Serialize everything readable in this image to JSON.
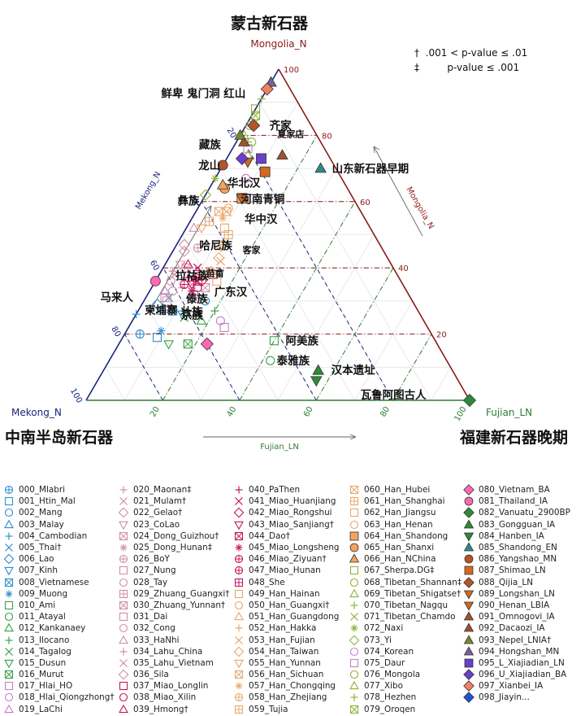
{
  "chart_data": {
    "type": "scatter",
    "subtype": "ternary",
    "titles": {
      "top": "蒙古新石器",
      "left": "中南半岛新石器",
      "right": "福建新石器晚期"
    },
    "vertex_labels": {
      "top": "Mongolia_N",
      "left": "Mekong_N",
      "right": "Fujian_LN"
    },
    "axis_labels": {
      "left": "Mekong_N",
      "right": "Mongolia_N",
      "bottom": "Fujian_LN"
    },
    "ticks": {
      "left": [
        "20",
        "40",
        "60",
        "80",
        "100"
      ],
      "right": [
        "20",
        "40",
        "60",
        "80",
        "100"
      ],
      "bottom": [
        "20",
        "40",
        "60",
        "80",
        "100"
      ]
    },
    "significance_notes": [
      {
        "symbol": "†",
        "text": ".001 < p-value ≤ .01"
      },
      {
        "symbol": "‡",
        "text": "p-value ≤ .001"
      }
    ],
    "grid": true,
    "reference_lines_mongolia": [
      20,
      40,
      60,
      80
    ],
    "annotations": [
      {
        "text": "鲜卑 鬼门洞 红山",
        "mon": 93,
        "fuj": 0
      },
      {
        "text": "齐家",
        "mon": 83,
        "fuj": 4
      },
      {
        "text": "藏族",
        "mon": 78,
        "fuj": 0
      },
      {
        "text": "夏家店",
        "mon": 78,
        "fuj": 9
      },
      {
        "text": "龙山",
        "mon": 71,
        "fuj": 0
      },
      {
        "text": "华北汉",
        "mon": 66,
        "fuj": 2
      },
      {
        "text": "山东新石器早期",
        "mon": 70,
        "fuj": 26
      },
      {
        "text": "彝族",
        "mon": 61,
        "fuj": 0
      },
      {
        "text": "河南青铜",
        "mon": 61,
        "fuj": 8
      },
      {
        "text": "华中汉",
        "mon": 55,
        "fuj": 12
      },
      {
        "text": "客家",
        "mon": 46,
        "fuj": 16
      },
      {
        "text": "哈尼族",
        "mon": 47,
        "fuj": 0
      },
      {
        "text": "苗畲",
        "mon": 39,
        "fuj": 13
      },
      {
        "text": "拉祜族",
        "mon": 38,
        "fuj": 0
      },
      {
        "text": "广东汉",
        "mon": 33,
        "fuj": 16
      },
      {
        "text": "马来人",
        "mon": 31,
        "fuj": 0
      },
      {
        "text": "傣族",
        "mon": 31,
        "fuj": 2
      },
      {
        "text": "柬埔寨",
        "mon": 27,
        "fuj": 0
      },
      {
        "text": "京族",
        "mon": 27,
        "fuj": 4
      },
      {
        "text": "壮族",
        "mon": 27,
        "fuj": 12
      },
      {
        "text": "阿美族",
        "mon": 18,
        "fuj": 40
      },
      {
        "text": "泰雅族",
        "mon": 12,
        "fuj": 42
      },
      {
        "text": "汉本遗址",
        "mon": 9,
        "fuj": 56
      },
      {
        "text": "瓦鲁阿图古人",
        "mon": 2,
        "fuj": 68
      }
    ],
    "series": [
      {
        "name": "000_Mlabri",
        "shape": "circleplus",
        "color": "#2d8fcf",
        "fill": false,
        "mon": 20,
        "fuj": 4
      },
      {
        "name": "001_Htin_Mal",
        "shape": "square",
        "color": "#2d8fcf",
        "fill": false,
        "mon": 19,
        "fuj": 9
      },
      {
        "name": "002_Mang",
        "shape": "circle",
        "color": "#2d8fcf",
        "fill": false,
        "mon": 30,
        "fuj": 16
      },
      {
        "name": "003_Malay",
        "shape": "triangle",
        "color": "#2d8fcf",
        "fill": false,
        "mon": 27,
        "fuj": 6
      },
      {
        "name": "004_Cambodian",
        "shape": "plus",
        "color": "#2d8fcf",
        "fill": false,
        "mon": 26,
        "fuj": 0
      },
      {
        "name": "005_Thai†",
        "shape": "x",
        "color": "#2d8fcf",
        "fill": false,
        "mon": 31,
        "fuj": 6
      },
      {
        "name": "006_Lao",
        "shape": "diamond",
        "color": "#2d8fcf",
        "fill": false,
        "mon": 29,
        "fuj": 4
      },
      {
        "name": "007_Kinh",
        "shape": "tridown",
        "color": "#2d8fcf",
        "fill": false,
        "mon": 26,
        "fuj": 12
      },
      {
        "name": "008_Vietnamese",
        "shape": "squarex",
        "color": "#2d8fcf",
        "fill": false,
        "mon": 27,
        "fuj": 9
      },
      {
        "name": "009_Muong",
        "shape": "asterisk",
        "color": "#2d8fcf",
        "fill": false,
        "mon": 21,
        "fuj": 9
      },
      {
        "name": "010_Ami",
        "shape": "square",
        "color": "#3aa04a",
        "fill": false,
        "mon": 18,
        "fuj": 40
      },
      {
        "name": "011_Atayal",
        "shape": "circle",
        "color": "#3aa04a",
        "fill": false,
        "mon": 12,
        "fuj": 42
      },
      {
        "name": "012_Kankanaey",
        "shape": "triangle",
        "color": "#3aa04a",
        "fill": false,
        "mon": 24,
        "fuj": 18
      },
      {
        "name": "013_Ilocano",
        "shape": "plus",
        "color": "#3aa04a",
        "fill": false,
        "mon": 27,
        "fuj": 20
      },
      {
        "name": "014_Tagalog",
        "shape": "x",
        "color": "#3aa04a",
        "fill": false,
        "mon": 25,
        "fuj": 13
      },
      {
        "name": "015_Dusun",
        "shape": "tridown",
        "color": "#3aa04a",
        "fill": false,
        "mon": 17,
        "fuj": 13
      },
      {
        "name": "016_Murut",
        "shape": "squarex",
        "color": "#3aa04a",
        "fill": false,
        "mon": 17,
        "fuj": 18
      },
      {
        "name": "017_Hlai_HO",
        "shape": "square",
        "color": "#c77fc9",
        "fill": false,
        "mon": 22,
        "fuj": 25
      },
      {
        "name": "018_Hlai_Qiongzhong†",
        "shape": "circle",
        "color": "#c77fc9",
        "fill": false,
        "mon": 24,
        "fuj": 23
      },
      {
        "name": "019_LaChi",
        "shape": "triangle",
        "color": "#c77fc9",
        "fill": false,
        "mon": 33,
        "fuj": 4
      },
      {
        "name": "020_Maonan‡",
        "shape": "plus",
        "color": "#d08fa8",
        "fill": false,
        "mon": 34,
        "fuj": 8
      },
      {
        "name": "021_Mulam†",
        "shape": "x",
        "color": "#d08fa8",
        "fill": false,
        "mon": 35,
        "fuj": 10
      },
      {
        "name": "022_Gelao†",
        "shape": "diamond",
        "color": "#d08fa8",
        "fill": false,
        "mon": 45,
        "fuj": 3
      },
      {
        "name": "023_CoLao",
        "shape": "tridown",
        "color": "#d08fa8",
        "fill": false,
        "mon": 41,
        "fuj": 4
      },
      {
        "name": "024_Dong_Guizhou†",
        "shape": "squarex",
        "color": "#d08fa8",
        "fill": false,
        "mon": 40,
        "fuj": 6
      },
      {
        "name": "025_Dong_Hunan‡",
        "shape": "asterisk",
        "color": "#d08fa8",
        "fill": false,
        "mon": 37,
        "fuj": 12
      },
      {
        "name": "026_BoY",
        "shape": "circleplus",
        "color": "#d08fa8",
        "fill": false,
        "mon": 46,
        "fuj": 6
      },
      {
        "name": "027_Nung",
        "shape": "square",
        "color": "#d08fa8",
        "fill": false,
        "mon": 30,
        "fuj": 6
      },
      {
        "name": "028_Tay",
        "shape": "circle",
        "color": "#d08fa8",
        "fill": false,
        "mon": 33,
        "fuj": 6
      },
      {
        "name": "029_Zhuang_Guangxi†",
        "shape": "squareplus",
        "color": "#d08fa8",
        "fill": false,
        "mon": 32,
        "fuj": 12
      },
      {
        "name": "030_Zhuang_Yunnan†",
        "shape": "squarex",
        "color": "#d08fa8",
        "fill": false,
        "mon": 34,
        "fuj": 14
      },
      {
        "name": "031_Dai",
        "shape": "square",
        "color": "#d08fa8",
        "fill": false,
        "mon": 31,
        "fuj": 5
      },
      {
        "name": "032_Cong",
        "shape": "circle",
        "color": "#d08fa8",
        "fill": false,
        "mon": 36,
        "fuj": 4
      },
      {
        "name": "033_HaNhi",
        "shape": "triangle",
        "color": "#d08fa8",
        "fill": false,
        "mon": 52,
        "fuj": 2
      },
      {
        "name": "034_Lahu_China",
        "shape": "plus",
        "color": "#d08fa8",
        "fill": false,
        "mon": 39,
        "fuj": 3
      },
      {
        "name": "035_Lahu_Vietnam",
        "shape": "x",
        "color": "#d08fa8",
        "fill": false,
        "mon": 38,
        "fuj": 4
      },
      {
        "name": "036_Sila",
        "shape": "diamond",
        "color": "#d08fa8",
        "fill": false,
        "mon": 47,
        "fuj": 2
      },
      {
        "name": "037_Miao_Longlin",
        "shape": "square",
        "color": "#c2185b",
        "fill": false,
        "mon": 38,
        "fuj": 10
      },
      {
        "name": "038_Miao_Xilin",
        "shape": "circle",
        "color": "#c2185b",
        "fill": false,
        "mon": 34,
        "fuj": 12
      },
      {
        "name": "039_Hmong†",
        "shape": "triangle",
        "color": "#c2185b",
        "fill": false,
        "mon": 41,
        "fuj": 6
      },
      {
        "name": "040_PaThen",
        "shape": "plus",
        "color": "#c2185b",
        "fill": false,
        "mon": 37,
        "fuj": 8
      },
      {
        "name": "041_Miao_Huanjiang",
        "shape": "x",
        "color": "#c2185b",
        "fill": false,
        "mon": 40,
        "fuj": 9
      },
      {
        "name": "042_Miao_Rongshui",
        "shape": "diamond",
        "color": "#c2185b",
        "fill": false,
        "mon": 36,
        "fuj": 12
      },
      {
        "name": "043_Miao_Sanjiang†",
        "shape": "tridown",
        "color": "#c2185b",
        "fill": false,
        "mon": 35,
        "fuj": 10
      },
      {
        "name": "044_Dao†",
        "shape": "squarex",
        "color": "#c2185b",
        "fill": false,
        "mon": 36,
        "fuj": 11
      },
      {
        "name": "045_Miao_Longsheng",
        "shape": "asterisk",
        "color": "#c2185b",
        "fill": false,
        "mon": 33,
        "fuj": 11
      },
      {
        "name": "046_Miao_Ziyuan†",
        "shape": "circleplus",
        "color": "#c2185b",
        "fill": false,
        "mon": 37,
        "fuj": 10
      },
      {
        "name": "047_Miao_Hunan",
        "shape": "circleplus",
        "color": "#c2185b",
        "fill": false,
        "mon": 35,
        "fuj": 8
      },
      {
        "name": "048_She",
        "shape": "squareplus",
        "color": "#c2185b",
        "fill": false,
        "mon": 38,
        "fuj": 14
      },
      {
        "name": "049_Han_Hainan",
        "shape": "square",
        "color": "#e6a86a",
        "fill": false,
        "mon": 36,
        "fuj": 16
      },
      {
        "name": "050_Han_Guangxi†",
        "shape": "circle",
        "color": "#e6a86a",
        "fill": false,
        "mon": 38,
        "fuj": 12
      },
      {
        "name": "051_Han_Guangdong",
        "shape": "triangle",
        "color": "#e6a86a",
        "fill": false,
        "mon": 39,
        "fuj": 13
      },
      {
        "name": "052_Han_Hakka",
        "shape": "plus",
        "color": "#e6a86a",
        "fill": false,
        "mon": 46,
        "fuj": 12
      },
      {
        "name": "053_Han_Fujian",
        "shape": "x",
        "color": "#e6a86a",
        "fill": false,
        "mon": 42,
        "fuj": 14
      },
      {
        "name": "054_Han_Taiwan",
        "shape": "diamond",
        "color": "#e6a86a",
        "fill": false,
        "mon": 43,
        "fuj": 13
      },
      {
        "name": "055_Han_Yunnan",
        "shape": "tridown",
        "color": "#e6a86a",
        "fill": false,
        "mon": 52,
        "fuj": 4
      },
      {
        "name": "056_Han_Sichuan",
        "shape": "squarex",
        "color": "#e6a86a",
        "fill": false,
        "mon": 57,
        "fuj": 6
      },
      {
        "name": "057_Han_Chongqing",
        "shape": "asterisk",
        "color": "#e6a86a",
        "fill": false,
        "mon": 55,
        "fuj": 8
      },
      {
        "name": "058_Han_Zhejiang",
        "shape": "circleplus",
        "color": "#e6a86a",
        "fill": false,
        "mon": 47,
        "fuj": 12
      },
      {
        "name": "059_Tujia",
        "shape": "squareplus",
        "color": "#e6a86a",
        "fill": false,
        "mon": 54,
        "fuj": 5
      },
      {
        "name": "060_Han_Hubei",
        "shape": "squarex",
        "color": "#e6a86a",
        "fill": false,
        "mon": 57,
        "fuj": 8
      },
      {
        "name": "061_Han_Shanghai",
        "shape": "squareplus",
        "color": "#e6a86a",
        "fill": false,
        "mon": 50,
        "fuj": 12
      },
      {
        "name": "062_Han_Jiangsu",
        "shape": "square",
        "color": "#e6a86a",
        "fill": false,
        "mon": 52,
        "fuj": 10
      },
      {
        "name": "063_Han_Henan",
        "shape": "circle",
        "color": "#e6a86a",
        "fill": false,
        "mon": 58,
        "fuj": 8
      },
      {
        "name": "064_Han_Shandong",
        "shape": "square",
        "color": "#f4a460",
        "fill": true,
        "mon": 61,
        "fuj": 10
      },
      {
        "name": "065_Han_Shanxi",
        "shape": "circle",
        "color": "#f4a460",
        "fill": true,
        "mon": 64,
        "fuj": 4
      },
      {
        "name": "066_Han_NChina",
        "shape": "triangle",
        "color": "#f4a460",
        "fill": true,
        "mon": 65,
        "fuj": 3
      },
      {
        "name": "067_Sherpa.DG‡",
        "shape": "square",
        "color": "#8db33a",
        "fill": false,
        "mon": 88,
        "fuj": 0
      },
      {
        "name": "068_Tibetan_Shannan‡",
        "shape": "circle",
        "color": "#8db33a",
        "fill": false,
        "mon": 83,
        "fuj": 1
      },
      {
        "name": "069_Tibetan_Shigatse†",
        "shape": "triangle",
        "color": "#8db33a",
        "fill": false,
        "mon": 80,
        "fuj": 1
      },
      {
        "name": "070_Tibetan_Nagqu",
        "shape": "plus",
        "color": "#8db33a",
        "fill": false,
        "mon": 91,
        "fuj": 0
      },
      {
        "name": "071_Tibetan_Chamdo",
        "shape": "x",
        "color": "#8db33a",
        "fill": false,
        "mon": 84,
        "fuj": 2
      },
      {
        "name": "072_Naxi",
        "shape": "asterisk",
        "color": "#8db33a",
        "fill": false,
        "mon": 67,
        "fuj": 0
      },
      {
        "name": "073_Yi",
        "shape": "diamond",
        "color": "#8db33a",
        "fill": false,
        "mon": 62,
        "fuj": 0
      },
      {
        "name": "074_Korean",
        "shape": "circle",
        "color": "#c77fc9",
        "fill": false,
        "mon": 67,
        "fuj": 8
      },
      {
        "name": "075_Daur",
        "shape": "square",
        "color": "#c77fc9",
        "fill": false,
        "mon": 76,
        "fuj": 4
      },
      {
        "name": "076_Mongola",
        "shape": "circle",
        "color": "#8db33a",
        "fill": false,
        "mon": 78,
        "fuj": 4
      },
      {
        "name": "077_Xibo",
        "shape": "triangle",
        "color": "#8db33a",
        "fill": false,
        "mon": 74,
        "fuj": 5
      },
      {
        "name": "078_Hezhen",
        "shape": "plus",
        "color": "#8db33a",
        "fill": false,
        "mon": 78,
        "fuj": 3
      },
      {
        "name": "079_Oroqen",
        "shape": "squarex",
        "color": "#8db33a",
        "fill": false,
        "mon": 86,
        "fuj": 1
      },
      {
        "name": "080_Vietnam_BA",
        "shape": "diamond",
        "color": "#ff69b4",
        "fill": true,
        "mon": 17,
        "fuj": 23
      },
      {
        "name": "081_Thailand_IA",
        "shape": "circle",
        "color": "#ff69b4",
        "fill": true,
        "mon": 36,
        "fuj": 0
      },
      {
        "name": "082_Vanuatu_2900BP",
        "shape": "diamond",
        "color": "#2e8b35",
        "fill": true,
        "mon": 0,
        "fuj": 100
      },
      {
        "name": "083_Gongguan_IA",
        "shape": "triangle",
        "color": "#2e8b35",
        "fill": true,
        "mon": 9,
        "fuj": 56
      },
      {
        "name": "084_Hanben_IA",
        "shape": "tridown",
        "color": "#2e8b35",
        "fill": true,
        "mon": 6,
        "fuj": 57
      },
      {
        "name": "085_Shandong_EN",
        "shape": "triangle",
        "color": "#2b8a8a",
        "fill": true,
        "mon": 70,
        "fuj": 26
      },
      {
        "name": "086_Yangshao_MN",
        "shape": "circle",
        "color": "#b5532a",
        "fill": true,
        "mon": 71,
        "fuj": 0
      },
      {
        "name": "087_Shimao_LN",
        "shape": "square",
        "color": "#d2691e",
        "fill": true,
        "mon": 69,
        "fuj": 12
      },
      {
        "name": "088_Qijia_LN",
        "shape": "diamond",
        "color": "#b5532a",
        "fill": true,
        "mon": 83,
        "fuj": 2
      },
      {
        "name": "089_Longshan_LN",
        "shape": "tridown",
        "color": "#d2691e",
        "fill": true,
        "mon": 72,
        "fuj": 6
      },
      {
        "name": "090_Henan_LBIA",
        "shape": "tridown",
        "color": "#d2691e",
        "fill": true,
        "mon": 61,
        "fuj": 10
      },
      {
        "name": "091_Omnogovi_IA",
        "shape": "triangle",
        "color": "#a0522d",
        "fill": true,
        "mon": 74,
        "fuj": 14
      },
      {
        "name": "092_Dacaozi_IA",
        "shape": "triangle",
        "color": "#a0522d",
        "fill": true,
        "mon": 78,
        "fuj": 2
      },
      {
        "name": "093_Nepel_LNIA†",
        "shape": "triangle",
        "color": "#7a8a2a",
        "fill": true,
        "mon": 80,
        "fuj": 0
      },
      {
        "name": "094_Hongshan_MN",
        "shape": "triangle",
        "color": "#7b5ea7",
        "fill": true,
        "mon": 96,
        "fuj": 0
      },
      {
        "name": "095_L_Xiajiadian_LN",
        "shape": "square",
        "color": "#6a3fc9",
        "fill": true,
        "mon": 73,
        "fuj": 9
      },
      {
        "name": "096_U_Xiajiadian_BA",
        "shape": "diamond",
        "color": "#6a3fc9",
        "fill": true,
        "mon": 73,
        "fuj": 4
      },
      {
        "name": "097_Xianbei_IA",
        "shape": "diamond",
        "color": "#f08060",
        "fill": true,
        "mon": 94,
        "fuj": 0
      }
    ]
  },
  "legend_last_visible": "098_Jiayin..."
}
